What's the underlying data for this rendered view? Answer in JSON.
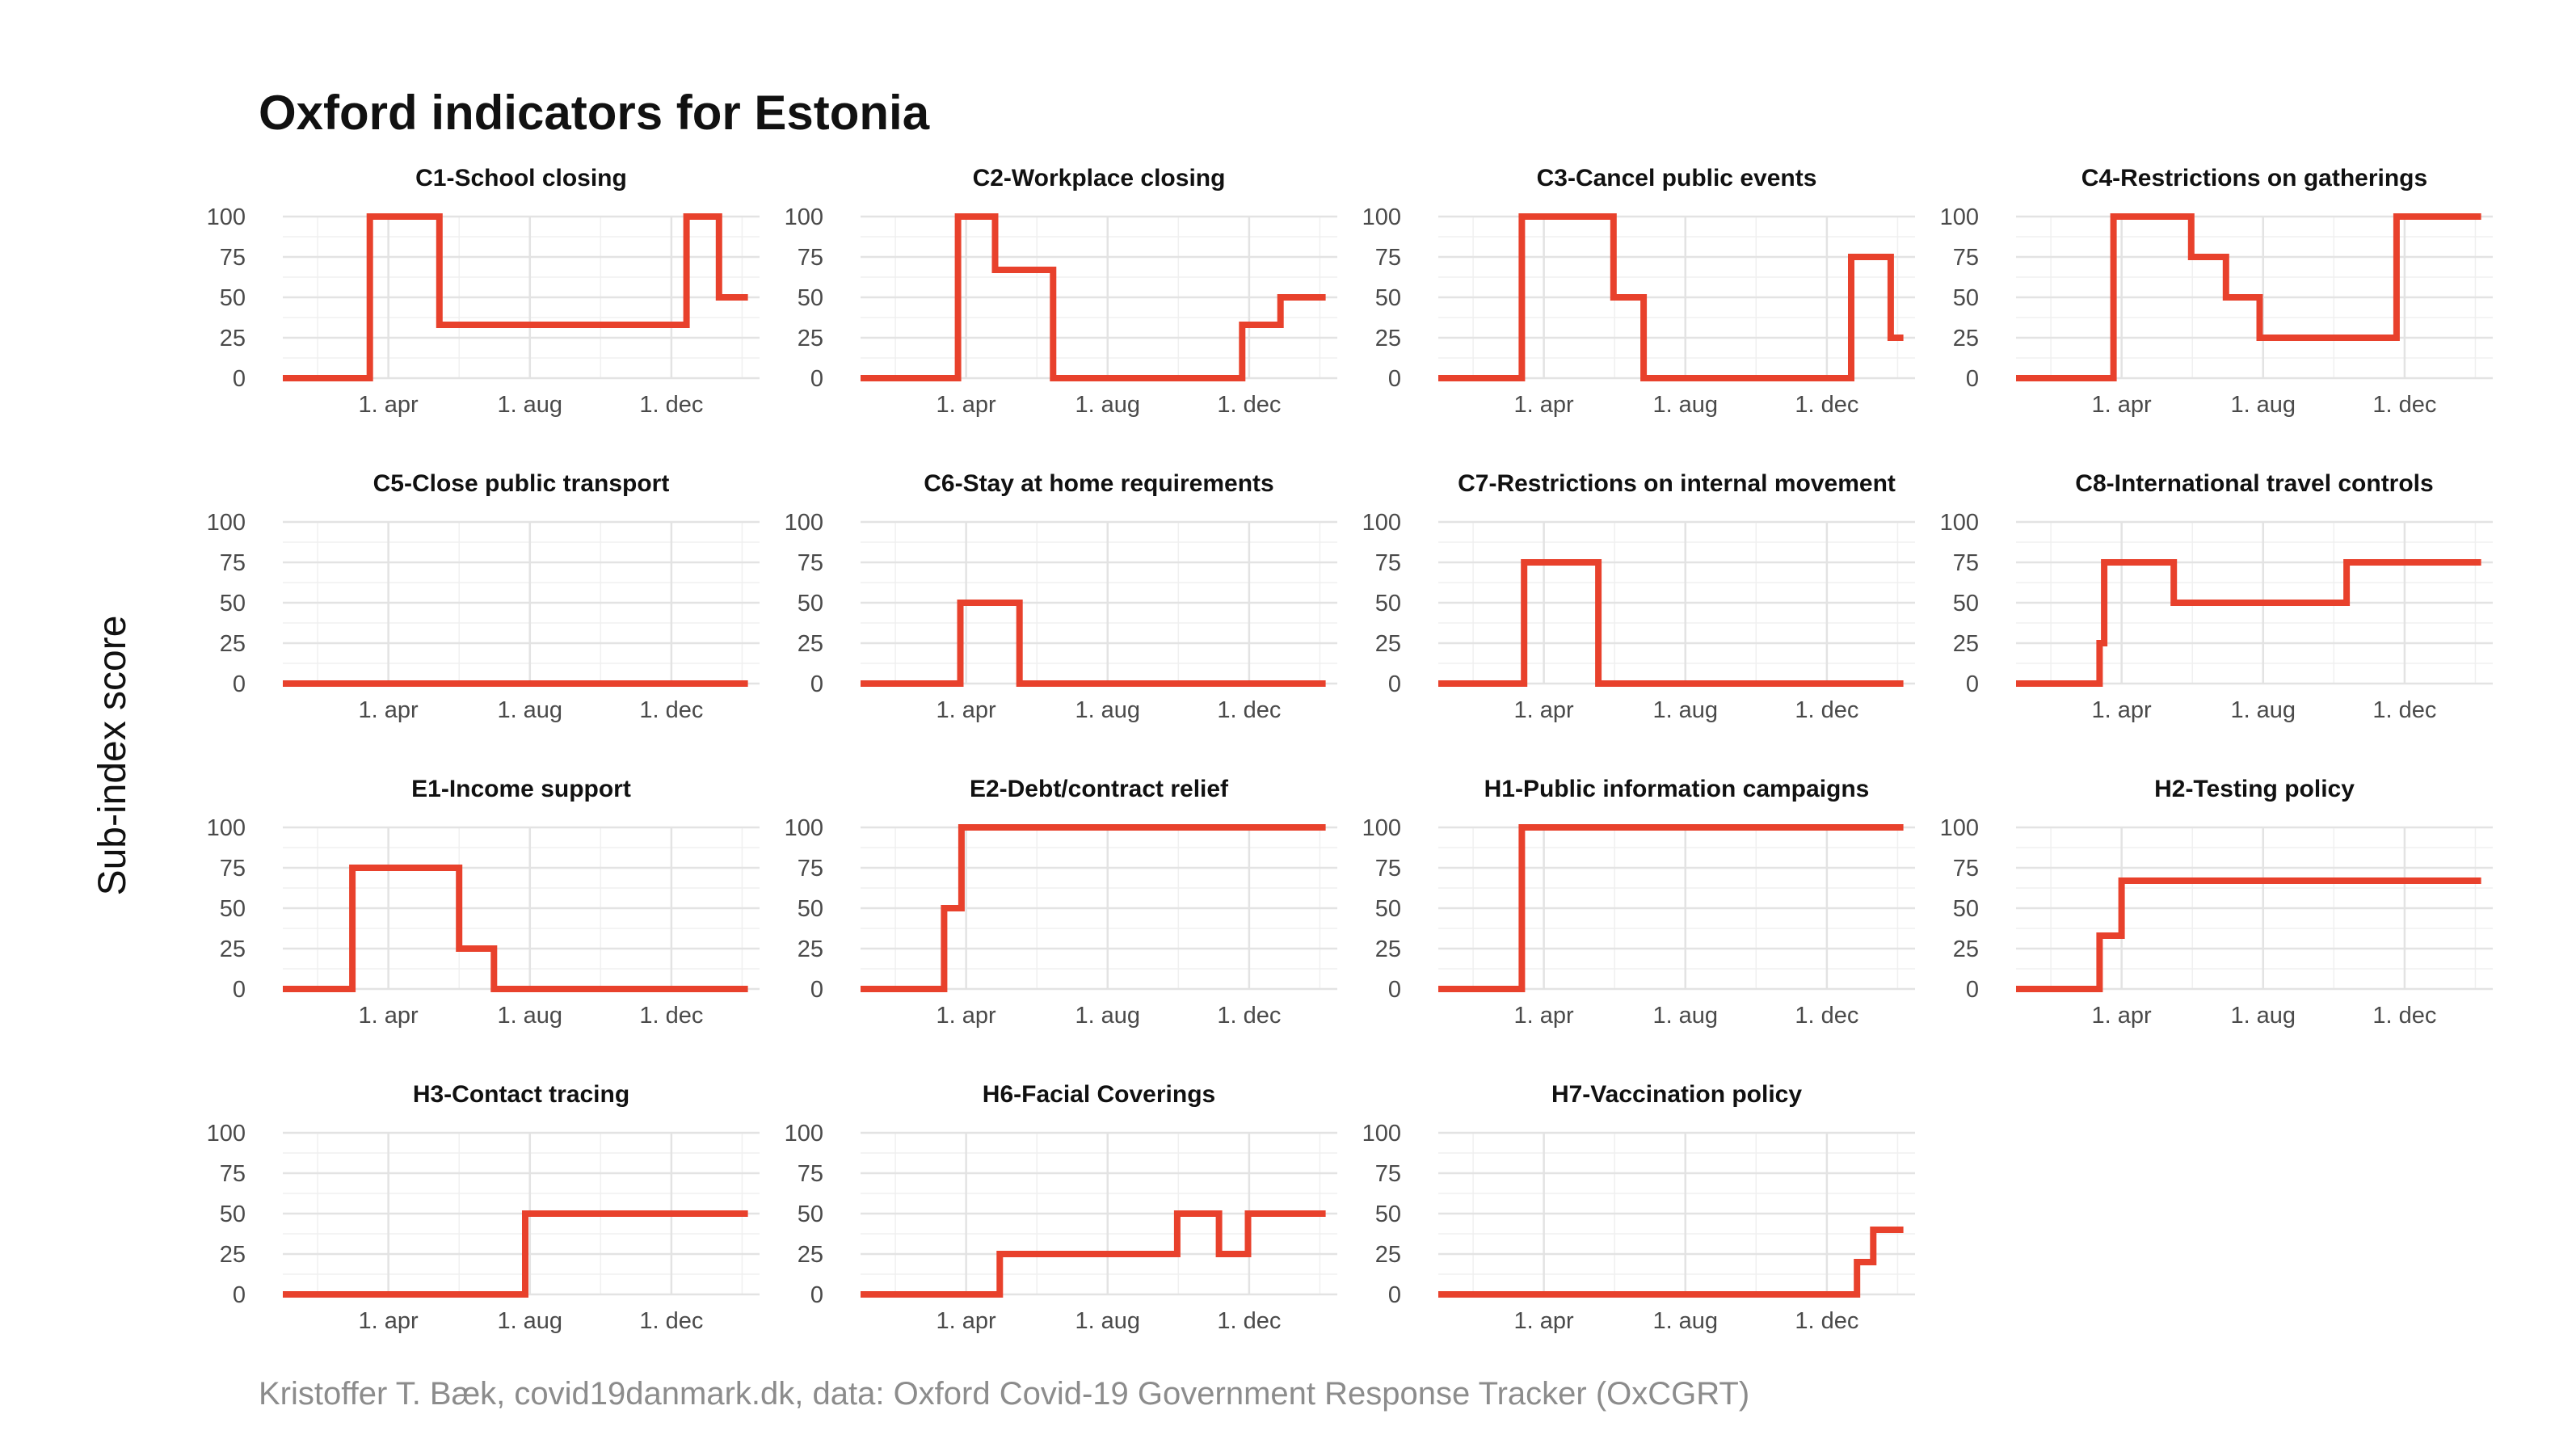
{
  "title": "Oxford indicators for Estonia",
  "ylabel": "Sub-index score",
  "caption": "Kristoffer T. Bæk, covid19danmark.dk, data: Oxford Covid-19 Government Response Tracker (OxCGRT)",
  "colors": {
    "line": "#e8412c",
    "grid": "#e3e3e3",
    "text": "#111111",
    "caption": "#8c8c8c"
  },
  "chart_data": [
    {
      "type": "line",
      "title": "C1-School closing",
      "xlim": [
        "2020-01-01",
        "2021-02-15"
      ],
      "ylim": [
        0,
        100
      ],
      "yticks": [
        0,
        25,
        50,
        75,
        100
      ],
      "xticks": [
        "2020-04-01",
        "2020-08-01",
        "2020-12-01"
      ],
      "xtick_labels": [
        "1. apr",
        "1. aug",
        "1. dec"
      ],
      "grid": true,
      "series": [
        {
          "color": "#e8412c",
          "x": [
            "2020-01-01",
            "2020-03-16",
            "2020-03-16",
            "2020-05-15",
            "2020-05-15",
            "2020-12-14",
            "2020-12-14",
            "2021-01-11",
            "2021-01-11",
            "2021-02-05"
          ],
          "y": [
            0,
            0,
            100,
            100,
            33,
            33,
            100,
            100,
            50,
            50
          ]
        }
      ]
    },
    {
      "type": "line",
      "title": "C2-Workplace closing",
      "xlim": [
        "2020-01-01",
        "2021-02-15"
      ],
      "ylim": [
        0,
        100
      ],
      "yticks": [
        0,
        25,
        50,
        75,
        100
      ],
      "xticks": [
        "2020-04-01",
        "2020-08-01",
        "2020-12-01"
      ],
      "xtick_labels": [
        "1. apr",
        "1. aug",
        "1. dec"
      ],
      "grid": true,
      "series": [
        {
          "color": "#e8412c",
          "x": [
            "2020-01-01",
            "2020-03-25",
            "2020-03-25",
            "2020-04-26",
            "2020-04-26",
            "2020-06-15",
            "2020-06-15",
            "2020-11-25",
            "2020-11-25",
            "2020-12-28",
            "2020-12-28",
            "2021-02-05"
          ],
          "y": [
            0,
            0,
            100,
            100,
            67,
            67,
            0,
            0,
            33,
            33,
            50,
            50
          ]
        }
      ]
    },
    {
      "type": "line",
      "title": "C3-Cancel public events",
      "xlim": [
        "2020-01-01",
        "2021-02-15"
      ],
      "ylim": [
        0,
        100
      ],
      "yticks": [
        0,
        25,
        50,
        75,
        100
      ],
      "xticks": [
        "2020-04-01",
        "2020-08-01",
        "2020-12-01"
      ],
      "xtick_labels": [
        "1. apr",
        "1. aug",
        "1. dec"
      ],
      "grid": true,
      "series": [
        {
          "color": "#e8412c",
          "x": [
            "2020-01-01",
            "2020-03-13",
            "2020-03-13",
            "2020-05-31",
            "2020-05-31",
            "2020-06-26",
            "2020-06-26",
            "2020-12-22",
            "2020-12-22",
            "2021-01-25",
            "2021-01-25",
            "2021-02-05"
          ],
          "y": [
            0,
            0,
            100,
            100,
            50,
            50,
            0,
            0,
            75,
            75,
            25,
            25
          ]
        }
      ]
    },
    {
      "type": "line",
      "title": "C4-Restrictions on gatherings",
      "xlim": [
        "2020-01-01",
        "2021-02-15"
      ],
      "ylim": [
        0,
        100
      ],
      "yticks": [
        0,
        25,
        50,
        75,
        100
      ],
      "xticks": [
        "2020-04-01",
        "2020-08-01",
        "2020-12-01"
      ],
      "xtick_labels": [
        "1. apr",
        "1. aug",
        "1. dec"
      ],
      "grid": true,
      "series": [
        {
          "color": "#e8412c",
          "x": [
            "2020-01-01",
            "2020-03-25",
            "2020-03-25",
            "2020-05-31",
            "2020-05-31",
            "2020-06-30",
            "2020-06-30",
            "2020-07-29",
            "2020-07-29",
            "2020-11-24",
            "2020-11-24",
            "2021-02-05"
          ],
          "y": [
            0,
            0,
            100,
            100,
            75,
            75,
            50,
            50,
            25,
            25,
            100,
            100
          ]
        }
      ]
    },
    {
      "type": "line",
      "title": "C5-Close public transport",
      "xlim": [
        "2020-01-01",
        "2021-02-15"
      ],
      "ylim": [
        0,
        100
      ],
      "yticks": [
        0,
        25,
        50,
        75,
        100
      ],
      "xticks": [
        "2020-04-01",
        "2020-08-01",
        "2020-12-01"
      ],
      "xtick_labels": [
        "1. apr",
        "1. aug",
        "1. dec"
      ],
      "grid": true,
      "series": [
        {
          "color": "#e8412c",
          "x": [
            "2020-01-01",
            "2021-02-05"
          ],
          "y": [
            0,
            0
          ]
        }
      ]
    },
    {
      "type": "line",
      "title": "C6-Stay at home requirements",
      "xlim": [
        "2020-01-01",
        "2021-02-15"
      ],
      "ylim": [
        0,
        100
      ],
      "yticks": [
        0,
        25,
        50,
        75,
        100
      ],
      "xticks": [
        "2020-04-01",
        "2020-08-01",
        "2020-12-01"
      ],
      "xtick_labels": [
        "1. apr",
        "1. aug",
        "1. dec"
      ],
      "grid": true,
      "series": [
        {
          "color": "#e8412c",
          "x": [
            "2020-01-01",
            "2020-03-27",
            "2020-03-27",
            "2020-05-17",
            "2020-05-17",
            "2021-02-05"
          ],
          "y": [
            0,
            0,
            50,
            50,
            0,
            0
          ]
        }
      ]
    },
    {
      "type": "line",
      "title": "C7-Restrictions on internal movement",
      "xlim": [
        "2020-01-01",
        "2021-02-15"
      ],
      "ylim": [
        0,
        100
      ],
      "yticks": [
        0,
        25,
        50,
        75,
        100
      ],
      "xticks": [
        "2020-04-01",
        "2020-08-01",
        "2020-12-01"
      ],
      "xtick_labels": [
        "1. apr",
        "1. aug",
        "1. dec"
      ],
      "grid": true,
      "series": [
        {
          "color": "#e8412c",
          "x": [
            "2020-01-01",
            "2020-03-15",
            "2020-03-15",
            "2020-05-18",
            "2020-05-18",
            "2021-02-05"
          ],
          "y": [
            0,
            0,
            75,
            75,
            0,
            0
          ]
        }
      ]
    },
    {
      "type": "line",
      "title": "C8-International travel controls",
      "xlim": [
        "2020-01-01",
        "2021-02-15"
      ],
      "ylim": [
        0,
        100
      ],
      "yticks": [
        0,
        25,
        50,
        75,
        100
      ],
      "xticks": [
        "2020-04-01",
        "2020-08-01",
        "2020-12-01"
      ],
      "xtick_labels": [
        "1. apr",
        "1. aug",
        "1. dec"
      ],
      "grid": true,
      "series": [
        {
          "color": "#e8412c",
          "x": [
            "2020-01-01",
            "2020-03-13",
            "2020-03-13",
            "2020-03-17",
            "2020-03-17",
            "2020-05-16",
            "2020-05-16",
            "2020-10-12",
            "2020-10-12",
            "2021-02-05"
          ],
          "y": [
            0,
            0,
            25,
            25,
            75,
            75,
            50,
            50,
            75,
            75
          ]
        }
      ]
    },
    {
      "type": "line",
      "title": "E1-Income support",
      "xlim": [
        "2020-01-01",
        "2021-02-15"
      ],
      "ylim": [
        0,
        100
      ],
      "yticks": [
        0,
        25,
        50,
        75,
        100
      ],
      "xticks": [
        "2020-04-01",
        "2020-08-01",
        "2020-12-01"
      ],
      "xtick_labels": [
        "1. apr",
        "1. aug",
        "1. dec"
      ],
      "grid": true,
      "series": [
        {
          "color": "#e8412c",
          "x": [
            "2020-01-01",
            "2020-03-01",
            "2020-03-01",
            "2020-06-01",
            "2020-06-01",
            "2020-07-01",
            "2020-07-01",
            "2021-02-05"
          ],
          "y": [
            0,
            0,
            75,
            75,
            25,
            25,
            0,
            0
          ]
        }
      ]
    },
    {
      "type": "line",
      "title": "E2-Debt/contract relief",
      "xlim": [
        "2020-01-01",
        "2021-02-15"
      ],
      "ylim": [
        0,
        100
      ],
      "yticks": [
        0,
        25,
        50,
        75,
        100
      ],
      "xticks": [
        "2020-04-01",
        "2020-08-01",
        "2020-12-01"
      ],
      "xtick_labels": [
        "1. apr",
        "1. aug",
        "1. dec"
      ],
      "grid": true,
      "series": [
        {
          "color": "#e8412c",
          "x": [
            "2020-01-01",
            "2020-03-13",
            "2020-03-13",
            "2020-03-28",
            "2020-03-28",
            "2021-02-05"
          ],
          "y": [
            0,
            0,
            50,
            50,
            100,
            100
          ]
        }
      ]
    },
    {
      "type": "line",
      "title": "H1-Public information campaigns",
      "xlim": [
        "2020-01-01",
        "2021-02-15"
      ],
      "ylim": [
        0,
        100
      ],
      "yticks": [
        0,
        25,
        50,
        75,
        100
      ],
      "xticks": [
        "2020-04-01",
        "2020-08-01",
        "2020-12-01"
      ],
      "xtick_labels": [
        "1. apr",
        "1. aug",
        "1. dec"
      ],
      "grid": true,
      "series": [
        {
          "color": "#e8412c",
          "x": [
            "2020-01-01",
            "2020-03-13",
            "2020-03-13",
            "2021-02-05"
          ],
          "y": [
            0,
            0,
            100,
            100
          ]
        }
      ]
    },
    {
      "type": "line",
      "title": "H2-Testing policy",
      "xlim": [
        "2020-01-01",
        "2021-02-15"
      ],
      "ylim": [
        0,
        100
      ],
      "yticks": [
        0,
        25,
        50,
        75,
        100
      ],
      "xticks": [
        "2020-04-01",
        "2020-08-01",
        "2020-12-01"
      ],
      "xtick_labels": [
        "1. apr",
        "1. aug",
        "1. dec"
      ],
      "grid": true,
      "series": [
        {
          "color": "#e8412c",
          "x": [
            "2020-01-01",
            "2020-03-13",
            "2020-03-13",
            "2020-04-01",
            "2020-04-01",
            "2021-02-05"
          ],
          "y": [
            0,
            0,
            33,
            33,
            67,
            67
          ]
        }
      ]
    },
    {
      "type": "line",
      "title": "H3-Contact tracing",
      "xlim": [
        "2020-01-01",
        "2021-02-15"
      ],
      "ylim": [
        0,
        100
      ],
      "yticks": [
        0,
        25,
        50,
        75,
        100
      ],
      "xticks": [
        "2020-04-01",
        "2020-08-01",
        "2020-12-01"
      ],
      "xtick_labels": [
        "1. apr",
        "1. aug",
        "1. dec"
      ],
      "grid": true,
      "series": [
        {
          "color": "#e8412c",
          "x": [
            "2020-01-01",
            "2020-07-28",
            "2020-07-28",
            "2021-02-05"
          ],
          "y": [
            0,
            0,
            50,
            50
          ]
        }
      ]
    },
    {
      "type": "line",
      "title": "H6-Facial Coverings",
      "xlim": [
        "2020-01-01",
        "2021-02-15"
      ],
      "ylim": [
        0,
        100
      ],
      "yticks": [
        0,
        25,
        50,
        75,
        100
      ],
      "xticks": [
        "2020-04-01",
        "2020-08-01",
        "2020-12-01"
      ],
      "xtick_labels": [
        "1. apr",
        "1. aug",
        "1. dec"
      ],
      "grid": true,
      "series": [
        {
          "color": "#e8412c",
          "x": [
            "2020-01-01",
            "2020-04-30",
            "2020-04-30",
            "2020-09-30",
            "2020-09-30",
            "2020-11-05",
            "2020-11-05",
            "2020-11-30",
            "2020-11-30",
            "2021-02-05"
          ],
          "y": [
            0,
            0,
            25,
            25,
            50,
            50,
            25,
            25,
            50,
            50
          ]
        }
      ]
    },
    {
      "type": "line",
      "title": "H7-Vaccination policy",
      "xlim": [
        "2020-01-01",
        "2021-02-15"
      ],
      "ylim": [
        0,
        100
      ],
      "yticks": [
        0,
        25,
        50,
        75,
        100
      ],
      "xticks": [
        "2020-04-01",
        "2020-08-01",
        "2020-12-01"
      ],
      "xtick_labels": [
        "1. apr",
        "1. aug",
        "1. dec"
      ],
      "grid": true,
      "series": [
        {
          "color": "#e8412c",
          "x": [
            "2020-01-01",
            "2020-12-27",
            "2020-12-27",
            "2021-01-10",
            "2021-01-10",
            "2021-02-05"
          ],
          "y": [
            0,
            0,
            20,
            20,
            40,
            40
          ]
        }
      ]
    }
  ]
}
